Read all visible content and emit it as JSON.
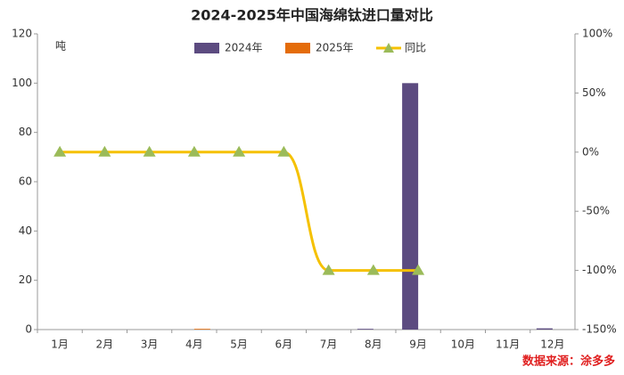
{
  "chart_data": {
    "type": "bar",
    "title": "2024-2025年中国海绵钛进口量对比",
    "y_label": "吨",
    "source": "数据来源：涂多多",
    "categories": [
      "1月",
      "2月",
      "3月",
      "4月",
      "5月",
      "6月",
      "7月",
      "8月",
      "9月",
      "10月",
      "11月",
      "12月"
    ],
    "series": [
      {
        "name": "2024年",
        "type": "bar",
        "color": "#5c4b80",
        "values": [
          0,
          0,
          0,
          0,
          0,
          0,
          0,
          0.3,
          100,
          0,
          0,
          0.5
        ]
      },
      {
        "name": "2025年",
        "type": "bar",
        "color": "#e46c0a",
        "values": [
          0,
          0,
          0,
          0.3,
          0,
          0,
          0,
          0,
          0,
          null,
          null,
          null
        ]
      },
      {
        "name": "同比",
        "type": "line",
        "axis": "y2",
        "color": "#f5c100",
        "marker_color": "#9bbb59",
        "values": [
          0,
          0,
          0,
          0,
          0,
          0,
          -100,
          -100,
          -100,
          null,
          null,
          null
        ]
      }
    ],
    "ylim": [
      0,
      120
    ],
    "yticks": [
      0,
      20,
      40,
      60,
      80,
      100,
      120
    ],
    "y2lim": [
      -150,
      100
    ],
    "y2ticks": [
      {
        "value": -150,
        "label": "-150%"
      },
      {
        "value": -100,
        "label": "-100%"
      },
      {
        "value": -50,
        "label": "-50%"
      },
      {
        "value": 0,
        "label": "0%"
      },
      {
        "value": 50,
        "label": "50%"
      },
      {
        "value": 100,
        "label": "100%"
      }
    ],
    "grid": false
  }
}
